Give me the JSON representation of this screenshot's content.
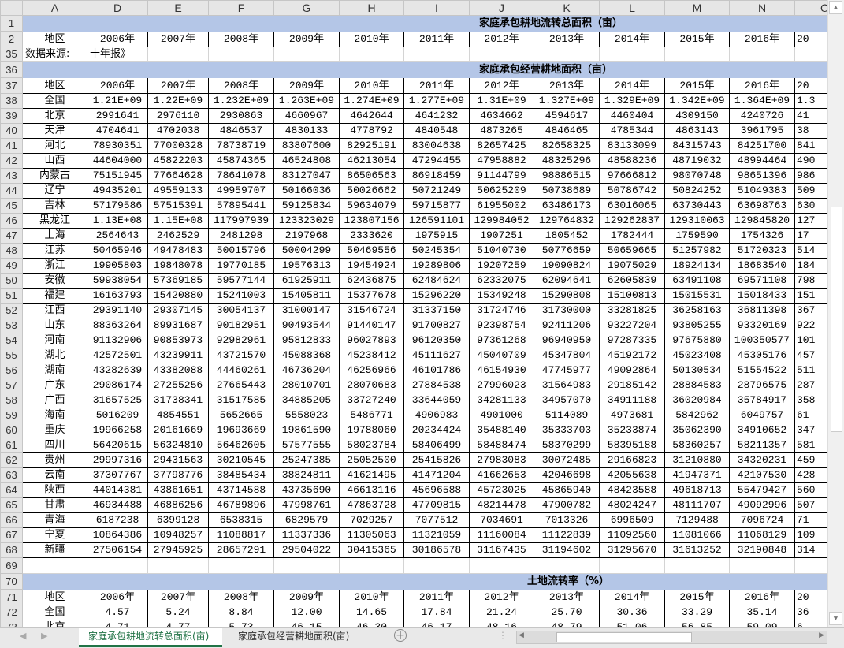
{
  "columns": [
    "A",
    "D",
    "E",
    "F",
    "G",
    "H",
    "I",
    "J",
    "K",
    "L",
    "M",
    "N",
    "O"
  ],
  "years": [
    "2006年",
    "2007年",
    "2008年",
    "2009年",
    "2010年",
    "2011年",
    "2012年",
    "2013年",
    "2014年",
    "2015年",
    "2016年",
    "20"
  ],
  "region_label": "地区",
  "section1": {
    "row_numbers": [
      "1",
      "2"
    ],
    "title": "家庭承包耕地流转总面积（亩）"
  },
  "source_row": {
    "row_number": "35",
    "label": "数据来源:",
    "text": "十年报》"
  },
  "section2": {
    "title_row": "36",
    "header_row": "37",
    "title": "家庭承包经营耕地面积（亩）",
    "rows": [
      {
        "n": "38",
        "region": "全国",
        "values": [
          "1.21E+09",
          "1.22E+09",
          "1.232E+09",
          "1.263E+09",
          "1.274E+09",
          "1.277E+09",
          "1.31E+09",
          "1.327E+09",
          "1.329E+09",
          "1.342E+09",
          "1.364E+09",
          "1.3"
        ]
      },
      {
        "n": "39",
        "region": "北京",
        "values": [
          "2991641",
          "2976110",
          "2930863",
          "4660967",
          "4642644",
          "4641232",
          "4634662",
          "4594617",
          "4460404",
          "4309150",
          "4240726",
          "41"
        ]
      },
      {
        "n": "40",
        "region": "天津",
        "values": [
          "4704641",
          "4702038",
          "4846537",
          "4830133",
          "4778792",
          "4840548",
          "4873265",
          "4846465",
          "4785344",
          "4863143",
          "3961795",
          "38"
        ]
      },
      {
        "n": "41",
        "region": "河北",
        "values": [
          "78930351",
          "77000328",
          "78738719",
          "83807600",
          "82925191",
          "83004638",
          "82657425",
          "82658325",
          "83133099",
          "84315743",
          "84251700",
          "841"
        ]
      },
      {
        "n": "42",
        "region": "山西",
        "values": [
          "44604000",
          "45822203",
          "45874365",
          "46524808",
          "46213054",
          "47294455",
          "47958882",
          "48325296",
          "48588236",
          "48719032",
          "48994464",
          "490"
        ]
      },
      {
        "n": "43",
        "region": "内蒙古",
        "values": [
          "75151945",
          "77664628",
          "78641078",
          "83127047",
          "86506563",
          "86918459",
          "91144799",
          "98886515",
          "97666812",
          "98070748",
          "98651396",
          "986"
        ]
      },
      {
        "n": "44",
        "region": "辽宁",
        "values": [
          "49435201",
          "49559133",
          "49959707",
          "50166036",
          "50026662",
          "50721249",
          "50625209",
          "50738689",
          "50786742",
          "50824252",
          "51049383",
          "509"
        ]
      },
      {
        "n": "45",
        "region": "吉林",
        "values": [
          "57179586",
          "57515391",
          "57895441",
          "59125834",
          "59634079",
          "59715877",
          "61955002",
          "63486173",
          "63016065",
          "63730443",
          "63698763",
          "630"
        ]
      },
      {
        "n": "46",
        "region": "黑龙江",
        "values": [
          "1.13E+08",
          "1.15E+08",
          "117997939",
          "123323029",
          "123807156",
          "126591101",
          "129984052",
          "129764832",
          "129262837",
          "129310063",
          "129845820",
          "127"
        ]
      },
      {
        "n": "47",
        "region": "上海",
        "values": [
          "2564643",
          "2462529",
          "2481298",
          "2197968",
          "2333620",
          "1975915",
          "1907251",
          "1805452",
          "1782444",
          "1759590",
          "1754326",
          "17"
        ]
      },
      {
        "n": "48",
        "region": "江苏",
        "values": [
          "50465946",
          "49478483",
          "50015796",
          "50004299",
          "50469556",
          "50245354",
          "51040730",
          "50776659",
          "50659665",
          "51257982",
          "51720323",
          "514"
        ]
      },
      {
        "n": "49",
        "region": "浙江",
        "values": [
          "19905803",
          "19848078",
          "19770185",
          "19576313",
          "19454924",
          "19289806",
          "19207259",
          "19090824",
          "19075029",
          "18924134",
          "18683540",
          "184"
        ]
      },
      {
        "n": "50",
        "region": "安徽",
        "values": [
          "59938054",
          "57369185",
          "59577144",
          "61925911",
          "62436875",
          "62484624",
          "62332075",
          "62094641",
          "62605839",
          "63491108",
          "69571108",
          "798"
        ]
      },
      {
        "n": "51",
        "region": "福建",
        "values": [
          "16163793",
          "15420880",
          "15241003",
          "15405811",
          "15377678",
          "15296220",
          "15349248",
          "15290808",
          "15100813",
          "15015531",
          "15018433",
          "151"
        ]
      },
      {
        "n": "52",
        "region": "江西",
        "values": [
          "29391140",
          "29307145",
          "30054137",
          "31000147",
          "31546724",
          "31337150",
          "31724746",
          "31730000",
          "33281825",
          "36258163",
          "36811398",
          "367"
        ]
      },
      {
        "n": "53",
        "region": "山东",
        "values": [
          "88363264",
          "89931687",
          "90182951",
          "90493544",
          "91440147",
          "91700827",
          "92398754",
          "92411206",
          "93227204",
          "93805255",
          "93320169",
          "922"
        ]
      },
      {
        "n": "54",
        "region": "河南",
        "values": [
          "91132906",
          "90853973",
          "92982961",
          "95812833",
          "96027893",
          "96120350",
          "97361268",
          "96940950",
          "97287335",
          "97675880",
          "100350577",
          "101"
        ]
      },
      {
        "n": "55",
        "region": "湖北",
        "values": [
          "42572501",
          "43239911",
          "43721570",
          "45088368",
          "45238412",
          "45111627",
          "45040709",
          "45347804",
          "45192172",
          "45023408",
          "45305176",
          "457"
        ]
      },
      {
        "n": "56",
        "region": "湖南",
        "values": [
          "43282639",
          "43382088",
          "44460261",
          "46736204",
          "46256966",
          "46101786",
          "46154930",
          "47745977",
          "49092864",
          "50130534",
          "51554522",
          "511"
        ]
      },
      {
        "n": "57",
        "region": "广东",
        "values": [
          "29086174",
          "27255256",
          "27665443",
          "28010701",
          "28070683",
          "27884538",
          "27996023",
          "31564983",
          "29185142",
          "28884583",
          "28796575",
          "287"
        ]
      },
      {
        "n": "58",
        "region": "广西",
        "values": [
          "31657525",
          "31738341",
          "31517585",
          "34885205",
          "33727240",
          "33644059",
          "34281133",
          "34957070",
          "34911188",
          "36020984",
          "35784917",
          "358"
        ]
      },
      {
        "n": "59",
        "region": "海南",
        "values": [
          "5016209",
          "4854551",
          "5652665",
          "5558023",
          "5486771",
          "4906983",
          "4901000",
          "5114089",
          "4973681",
          "5842962",
          "6049757",
          "61"
        ]
      },
      {
        "n": "60",
        "region": "重庆",
        "values": [
          "19966258",
          "20161669",
          "19693669",
          "19861590",
          "19788060",
          "20234424",
          "35488140",
          "35333703",
          "35233874",
          "35062390",
          "34910652",
          "347"
        ]
      },
      {
        "n": "61",
        "region": "四川",
        "values": [
          "56420615",
          "56324810",
          "56462605",
          "57577555",
          "58023784",
          "58406499",
          "58488474",
          "58370299",
          "58395188",
          "58360257",
          "58211357",
          "581"
        ]
      },
      {
        "n": "62",
        "region": "贵州",
        "values": [
          "29997316",
          "29431563",
          "30210545",
          "25247385",
          "25052500",
          "25415826",
          "27983083",
          "30072485",
          "29166823",
          "31210880",
          "34320231",
          "459"
        ]
      },
      {
        "n": "63",
        "region": "云南",
        "values": [
          "37307767",
          "37798776",
          "38485434",
          "38824811",
          "41621495",
          "41471204",
          "41662653",
          "42046698",
          "42055638",
          "41947371",
          "42107530",
          "428"
        ]
      },
      {
        "n": "64",
        "region": "陕西",
        "values": [
          "44014381",
          "43861651",
          "43714588",
          "43735690",
          "46613116",
          "45696588",
          "45723025",
          "45865940",
          "48423588",
          "49618713",
          "55479427",
          "560"
        ]
      },
      {
        "n": "65",
        "region": "甘肃",
        "values": [
          "46934488",
          "46886256",
          "46789896",
          "47998761",
          "47863728",
          "47709815",
          "48214478",
          "47900782",
          "48024247",
          "48111707",
          "49092996",
          "507"
        ]
      },
      {
        "n": "66",
        "region": "青海",
        "values": [
          "6187238",
          "6399128",
          "6538315",
          "6829579",
          "7029257",
          "7077512",
          "7034691",
          "7013326",
          "6996509",
          "7129488",
          "7096724",
          "71"
        ]
      },
      {
        "n": "67",
        "region": "宁夏",
        "values": [
          "10864386",
          "10948257",
          "11088817",
          "11337336",
          "11305063",
          "11321059",
          "11160084",
          "11122839",
          "11092560",
          "11081066",
          "11068129",
          "109"
        ]
      },
      {
        "n": "68",
        "region": "新疆",
        "values": [
          "27506154",
          "27945925",
          "28657291",
          "29504022",
          "30415365",
          "30186578",
          "31167435",
          "31194602",
          "31295670",
          "31613252",
          "32190848",
          "314"
        ]
      }
    ]
  },
  "empty_row": "69",
  "section3": {
    "title_row": "70",
    "header_row": "71",
    "title": "土地流转率（%）",
    "rows": [
      {
        "n": "72",
        "region": "全国",
        "values": [
          "4.57",
          "5.24",
          "8.84",
          "12.00",
          "14.65",
          "17.84",
          "21.24",
          "25.70",
          "30.36",
          "33.29",
          "35.14",
          "36"
        ]
      },
      {
        "n": "73",
        "region": "北京",
        "values": [
          "4.71",
          "4.77",
          "5.73",
          "46.15",
          "46.30",
          "46.17",
          "48.16",
          "48.79",
          "51.06",
          "56.85",
          "59.09",
          "6"
        ]
      }
    ]
  },
  "tabs": [
    {
      "label": "家庭承包耕地流转总面积(亩)",
      "active": true
    },
    {
      "label": "家庭承包经营耕地面积(亩)",
      "active": false
    }
  ],
  "colors": {
    "header_fill": "#b4c6e7",
    "tab_accent": "#217346"
  }
}
